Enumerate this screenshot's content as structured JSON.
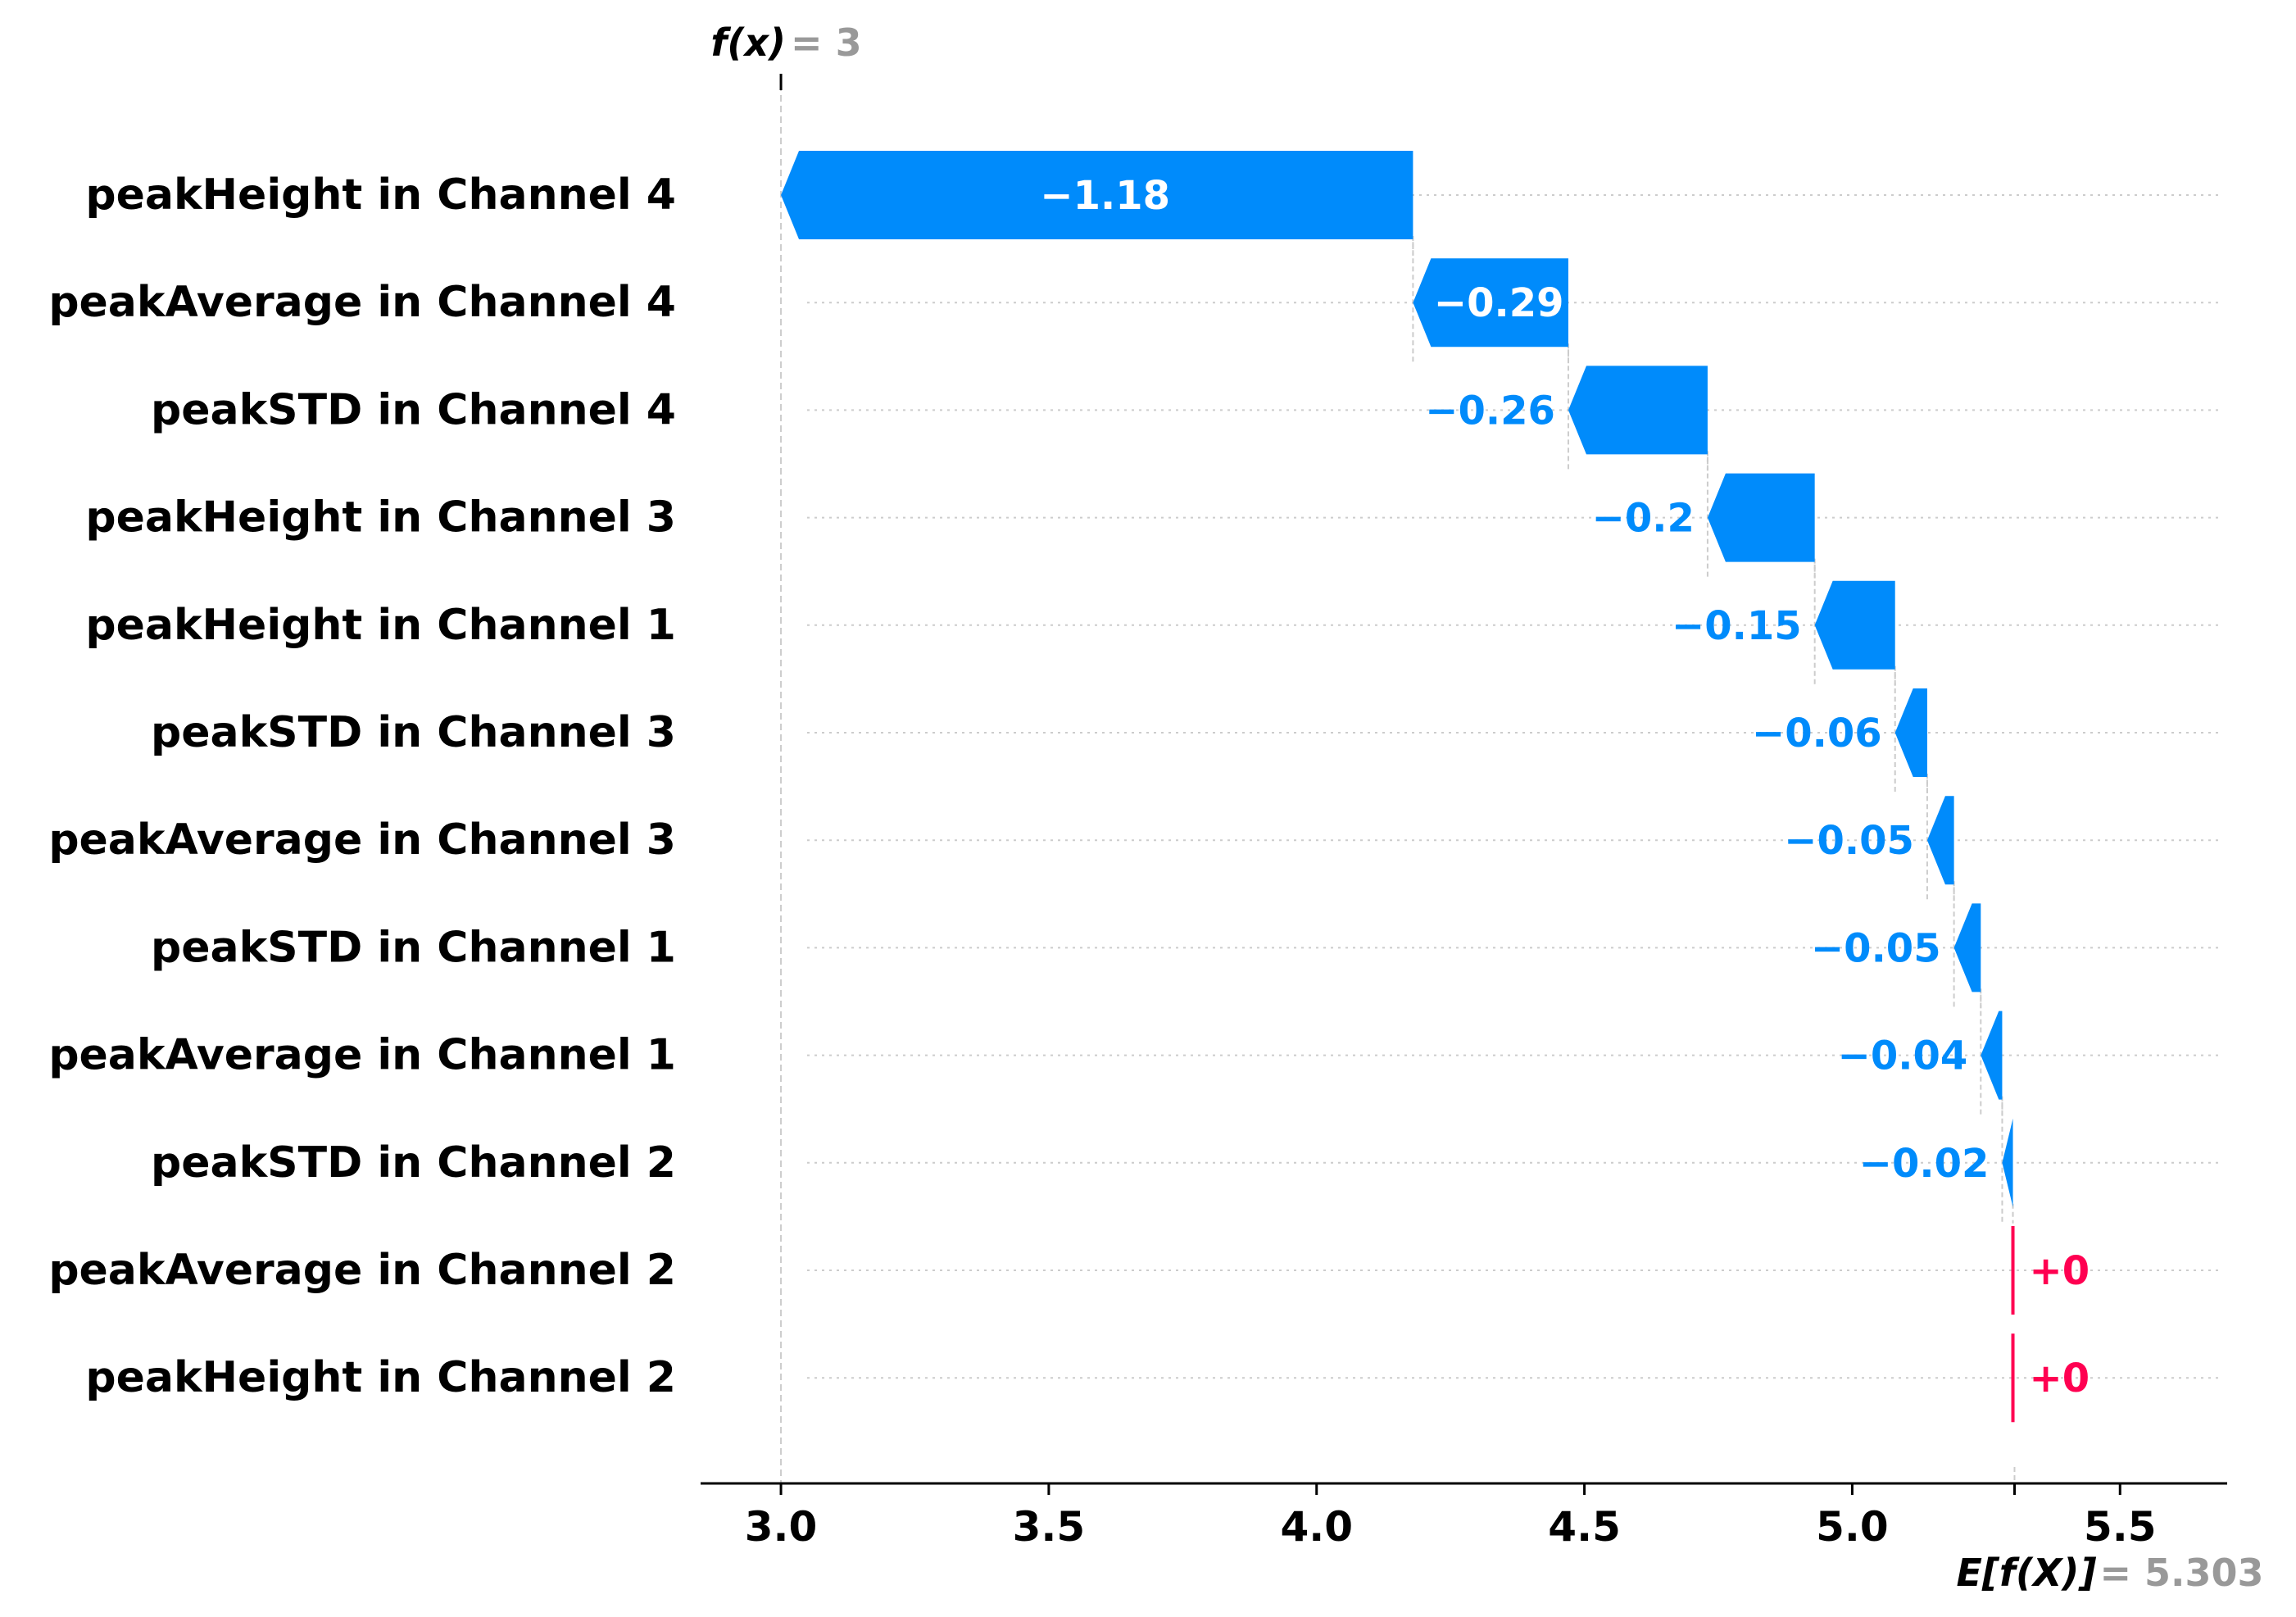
{
  "chart_data": {
    "type": "waterfall",
    "title": "",
    "xlabel": "",
    "ylabel": "",
    "xlim": [
      2.85,
      5.7
    ],
    "xticks": [
      3.0,
      3.5,
      4.0,
      4.5,
      5.0,
      5.5
    ],
    "xtick_labels": [
      "3.0",
      "3.5",
      "4.0",
      "4.5",
      "5.0",
      "5.5"
    ],
    "fx": {
      "label": "f(x)",
      "value": 3,
      "value_text": "= 3"
    },
    "base": {
      "label": "E[f(X)]",
      "value": 5.303,
      "value_text": "= 5.303"
    },
    "colors": {
      "negative": "#008bfb",
      "positive": "#ff0051",
      "value_gray": "#999999",
      "axis": "#000000",
      "guide": "#cccccc"
    },
    "features": [
      {
        "name": "peakHeight in Channel 4",
        "value": -1.18,
        "label": "−1.18"
      },
      {
        "name": "peakAverage in Channel 4",
        "value": -0.29,
        "label": "−0.29"
      },
      {
        "name": "peakSTD in Channel 4",
        "value": -0.26,
        "label": "−0.26"
      },
      {
        "name": "peakHeight in Channel 3",
        "value": -0.2,
        "label": "−0.2"
      },
      {
        "name": "peakHeight in Channel 1",
        "value": -0.15,
        "label": "−0.15"
      },
      {
        "name": "peakSTD in Channel 3",
        "value": -0.06,
        "label": "−0.06"
      },
      {
        "name": "peakAverage in Channel 3",
        "value": -0.05,
        "label": "−0.05"
      },
      {
        "name": "peakSTD in Channel 1",
        "value": -0.05,
        "label": "−0.05"
      },
      {
        "name": "peakAverage in Channel 1",
        "value": -0.04,
        "label": "−0.04"
      },
      {
        "name": "peakSTD in Channel 2",
        "value": -0.02,
        "label": "−0.02"
      },
      {
        "name": "peakAverage in Channel 2",
        "value": 0.0,
        "label": "+0"
      },
      {
        "name": "peakHeight in Channel 2",
        "value": 0.0,
        "label": "+0"
      }
    ]
  }
}
